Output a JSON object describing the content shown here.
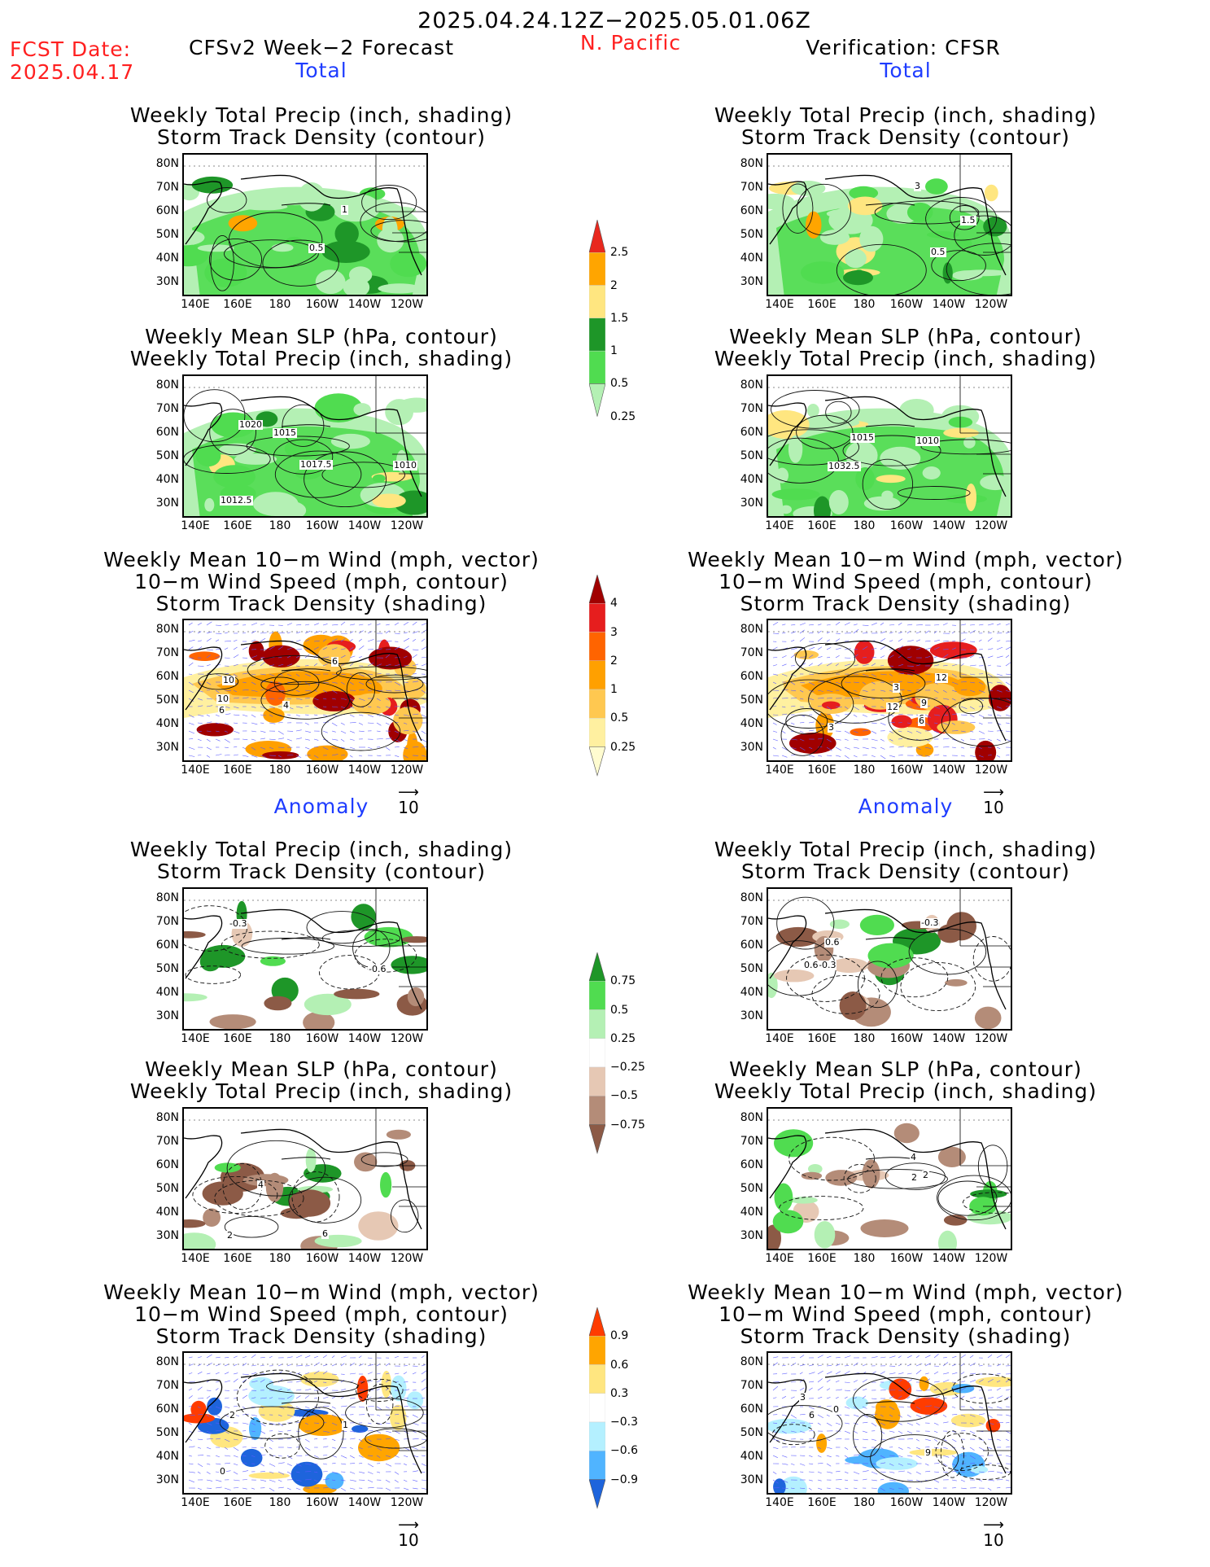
{
  "header": {
    "period": "2025.04.24.12Z−2025.05.01.06Z",
    "fcst_date_label": "FCST Date:",
    "fcst_date": "2025.04.17",
    "model": "CFSv2 Week−2 Forecast",
    "region": "N. Pacific",
    "verification": "Verification: CFSR"
  },
  "sections": {
    "total": "Total",
    "anomaly": "Anomaly"
  },
  "panel_titles": {
    "precip_storm": [
      "Weekly Total Precip (inch, shading)",
      "Storm Track Density (contour)"
    ],
    "slp_precip": [
      "Weekly Mean SLP (hPa, contour)",
      "Weekly Total Precip (inch, shading)"
    ],
    "wind_storm": [
      "Weekly Mean 10−m Wind (mph, vector)",
      "10−m Wind Speed (mph, contour)",
      "Storm Track Density (shading)"
    ]
  },
  "axes": {
    "lat_labels": [
      "80N",
      "70N",
      "60N",
      "50N",
      "40N",
      "30N"
    ],
    "lon_labels": [
      "140E",
      "160E",
      "180",
      "160W",
      "140W",
      "120W"
    ]
  },
  "vector_ref": "10",
  "colorbars": [
    {
      "name": "precip-total",
      "labels": [
        "2.5",
        "2",
        "1.5",
        "1",
        "0.5",
        "0.25"
      ],
      "colors": [
        "#e8281e",
        "#ffa500",
        "#ffe680",
        "#1e9628",
        "#50dc50",
        "#b4f0b4"
      ]
    },
    {
      "name": "storm-total",
      "labels": [
        "4",
        "3",
        "2",
        "1",
        "0.5",
        "0.25"
      ],
      "colors": [
        "#a00000",
        "#e61e1e",
        "#ff6400",
        "#ffa000",
        "#ffc850",
        "#fff0a0",
        "#fffcd0"
      ]
    },
    {
      "name": "precip-anom",
      "labels": [
        "0.75",
        "0.5",
        "0.25",
        "−0.25",
        "−0.5",
        "−0.75"
      ],
      "colors": [
        "#1e9628",
        "#50dc50",
        "#b4f0b4",
        "#ffffff",
        "#e6c8b4",
        "#b48c78",
        "#8c5a46"
      ]
    },
    {
      "name": "storm-anom",
      "labels": [
        "0.9",
        "0.6",
        "0.3",
        "−0.3",
        "−0.6",
        "−0.9"
      ],
      "colors": [
        "#ff3c00",
        "#ffa500",
        "#ffe680",
        "#ffffff",
        "#b4f0ff",
        "#50b4ff",
        "#1e64dc"
      ]
    }
  ],
  "contour_labels": {
    "fc_precip": [
      "1",
      "0.5"
    ],
    "vf_precip": [
      "0.5",
      "1.5",
      "3"
    ],
    "fc_slp": [
      "1020",
      "1010",
      "1012.5",
      "1017.5",
      "1015"
    ],
    "vf_slp": [
      "1032.5",
      "1015",
      "1010"
    ],
    "fc_wind": [
      "6",
      "4",
      "10",
      "10",
      "6"
    ],
    "vf_wind": [
      "9",
      "12",
      "6",
      "12",
      "3",
      "6",
      "3"
    ],
    "fc_pa": [
      "-0.3",
      "-0.6"
    ],
    "vf_pa": [
      "-0.3",
      "0.6",
      "-0.3",
      "0.6"
    ],
    "fc_sa": [
      "6",
      "4",
      "2"
    ],
    "vf_sa": [
      "2",
      "4",
      "2"
    ],
    "fc_wa": [
      "0",
      "1",
      "2"
    ],
    "vf_wa": [
      "6",
      "3",
      "9",
      "0"
    ]
  }
}
